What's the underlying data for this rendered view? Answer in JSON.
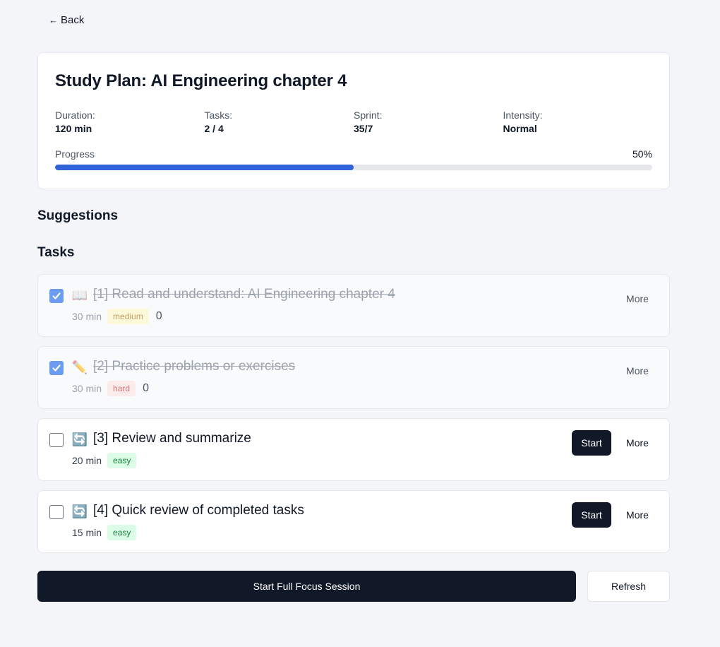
{
  "nav": {
    "back_label": "Back"
  },
  "plan": {
    "title": "Study Plan: AI Engineering chapter 4",
    "stats": [
      {
        "label": "Duration:",
        "value": "120 min"
      },
      {
        "label": "Tasks:",
        "value": "2 / 4"
      },
      {
        "label": "Sprint:",
        "value": "35/7"
      },
      {
        "label": "Intensity:",
        "value": "Normal"
      }
    ],
    "progress_label": "Progress",
    "progress_text": "50%",
    "progress_value": 0.5,
    "accent_color": "#3262d9"
  },
  "sections": {
    "suggestions": "Suggestions",
    "tasks": "Tasks"
  },
  "tasks": [
    {
      "emoji": "📖",
      "icon": "book-icon",
      "title": "[1] Read and understand: AI Engineering chapter 4",
      "duration": "30 min",
      "difficulty": "medium",
      "count": "0",
      "done": true,
      "more_label": "More"
    },
    {
      "emoji": "✏️",
      "icon": "pencil-icon",
      "title": "[2] Practice problems or exercises",
      "duration": "30 min",
      "difficulty": "hard",
      "count": "0",
      "done": true,
      "more_label": "More"
    },
    {
      "emoji": "🔄",
      "icon": "refresh-cycle-icon",
      "title": "[3] Review and summarize",
      "duration": "20 min",
      "difficulty": "easy",
      "done": false,
      "start_label": "Start",
      "more_label": "More"
    },
    {
      "emoji": "🔄",
      "icon": "refresh-cycle-icon",
      "title": "[4] Quick review of completed tasks",
      "duration": "15 min",
      "difficulty": "easy",
      "done": false,
      "start_label": "Start",
      "more_label": "More"
    }
  ],
  "footer": {
    "focus_label": "Start Full Focus Session",
    "refresh_label": "Refresh"
  }
}
